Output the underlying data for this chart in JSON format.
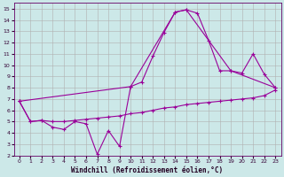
{
  "xlabel": "Windchill (Refroidissement éolien,°C)",
  "bg_color": "#cce8e8",
  "line_color": "#990099",
  "grid_color": "#b0b0b0",
  "xlim": [
    -0.5,
    23.5
  ],
  "ylim": [
    2,
    15.5
  ],
  "yticks": [
    2,
    3,
    4,
    5,
    6,
    7,
    8,
    9,
    10,
    11,
    12,
    13,
    14,
    15
  ],
  "xticks": [
    0,
    1,
    2,
    3,
    4,
    5,
    6,
    7,
    8,
    9,
    10,
    11,
    12,
    13,
    14,
    15,
    16,
    17,
    18,
    19,
    20,
    21,
    22,
    23
  ],
  "series1_x": [
    0,
    1,
    2,
    3,
    4,
    5,
    6,
    7,
    8,
    9,
    10,
    11,
    12,
    13,
    14,
    15,
    16,
    17,
    18,
    19,
    20,
    21,
    22,
    23
  ],
  "series1_y": [
    6.8,
    5.0,
    5.1,
    4.5,
    4.3,
    5.0,
    4.8,
    2.1,
    4.2,
    2.8,
    8.1,
    8.5,
    10.8,
    12.9,
    14.7,
    14.9,
    14.6,
    12.2,
    9.5,
    9.5,
    9.3,
    11.0,
    9.2,
    8.0
  ],
  "series2_x": [
    0,
    1,
    2,
    3,
    4,
    5,
    6,
    7,
    8,
    9,
    10,
    11,
    12,
    13,
    14,
    15,
    16,
    17,
    18,
    19,
    20,
    21,
    22,
    23
  ],
  "series2_y": [
    6.8,
    5.0,
    5.1,
    5.0,
    5.0,
    5.1,
    5.2,
    5.3,
    5.4,
    5.5,
    5.7,
    5.8,
    6.0,
    6.2,
    6.3,
    6.5,
    6.6,
    6.7,
    6.8,
    6.9,
    7.0,
    7.1,
    7.3,
    7.8
  ],
  "series3_x": [
    0,
    10,
    14,
    15,
    19,
    23
  ],
  "series3_y": [
    6.8,
    8.1,
    14.7,
    14.9,
    9.5,
    8.0
  ]
}
